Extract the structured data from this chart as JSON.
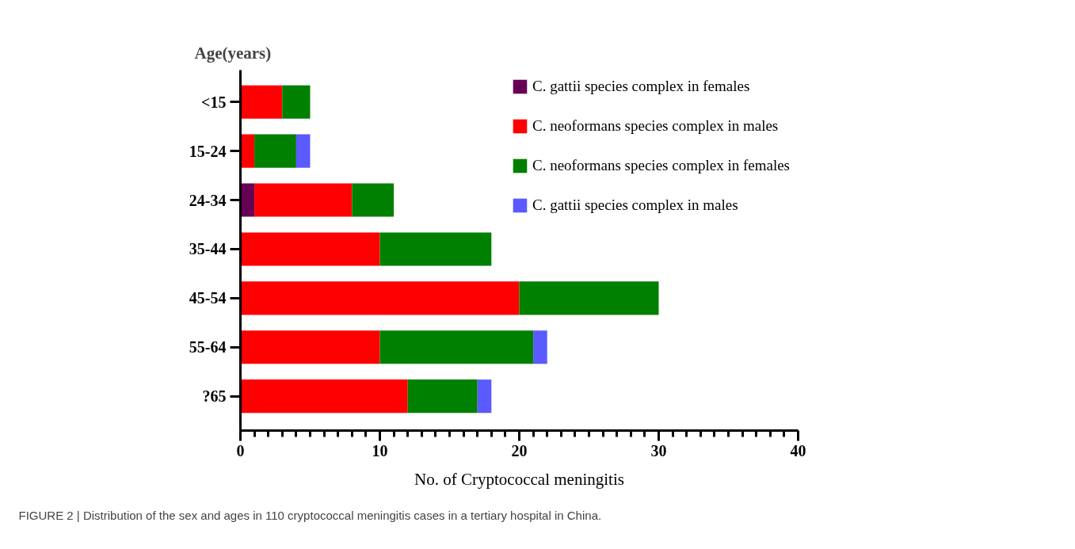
{
  "chart_data": {
    "type": "bar",
    "orientation": "horizontal",
    "stacked": true,
    "ylabel": "Age(years)",
    "xlabel": "No. of Cryptococcal meningitis",
    "categories": [
      "<15",
      "15-24",
      "24-34",
      "35-44",
      "45-54",
      "55-64",
      "?65"
    ],
    "series": [
      {
        "name": "C. gattii species complex in females",
        "color": "#660055",
        "values": [
          0,
          0,
          1,
          0,
          0,
          0,
          0
        ]
      },
      {
        "name": "C. neoformans species complex in males",
        "color": "#ff0000",
        "values": [
          3,
          1,
          7,
          10,
          20,
          10,
          12
        ]
      },
      {
        "name": "C. neoformans species complex in females",
        "color": "#008000",
        "values": [
          2,
          3,
          3,
          8,
          10,
          11,
          5
        ]
      },
      {
        "name": "C. gattii species complex in males",
        "color": "#5a5aff",
        "values": [
          0,
          1,
          0,
          0,
          0,
          1,
          1
        ]
      }
    ],
    "xlim": [
      0,
      40
    ],
    "xticks": [
      0,
      {
        "value": 1,
        "label": null
      },
      {
        "value": 2,
        "label": null
      },
      {
        "value": 3,
        "label": null
      },
      {
        "value": 4,
        "label": null
      },
      {
        "value": 5,
        "label": null
      },
      {
        "value": 6,
        "label": null
      },
      {
        "value": 7,
        "label": null
      },
      {
        "value": 8,
        "label": null
      },
      {
        "value": 9,
        "label": null
      },
      10,
      {
        "value": 11,
        "label": null
      },
      {
        "value": 12,
        "label": null
      },
      {
        "value": 13,
        "label": null
      },
      {
        "value": 14,
        "label": null
      },
      {
        "value": 15,
        "label": null
      },
      {
        "value": 16,
        "label": null
      },
      {
        "value": 17,
        "label": null
      },
      {
        "value": 18,
        "label": null
      },
      {
        "value": 19,
        "label": null
      },
      20,
      {
        "value": 21,
        "label": null
      },
      {
        "value": 22,
        "label": null
      },
      {
        "value": 23,
        "label": null
      },
      {
        "value": 24,
        "label": null
      },
      {
        "value": 25,
        "label": null
      },
      {
        "value": 26,
        "label": null
      },
      {
        "value": 27,
        "label": null
      },
      {
        "value": 28,
        "label": null
      },
      {
        "value": 29,
        "label": null
      },
      30,
      {
        "value": 31,
        "label": null
      },
      {
        "value": 32,
        "label": null
      },
      {
        "value": 33,
        "label": null
      },
      {
        "value": 34,
        "label": null
      },
      {
        "value": 35,
        "label": null
      },
      {
        "value": 36,
        "label": null
      },
      {
        "value": 37,
        "label": null
      },
      {
        "value": 38,
        "label": null
      },
      {
        "value": 39,
        "label": null
      },
      40
    ],
    "grid": false,
    "legend": "top right",
    "annotations": [
      "FIGURE 2 | Distribution of the sex and ages in 110 cryptococcal meningitis cases in a tertiary hospital in China."
    ]
  }
}
